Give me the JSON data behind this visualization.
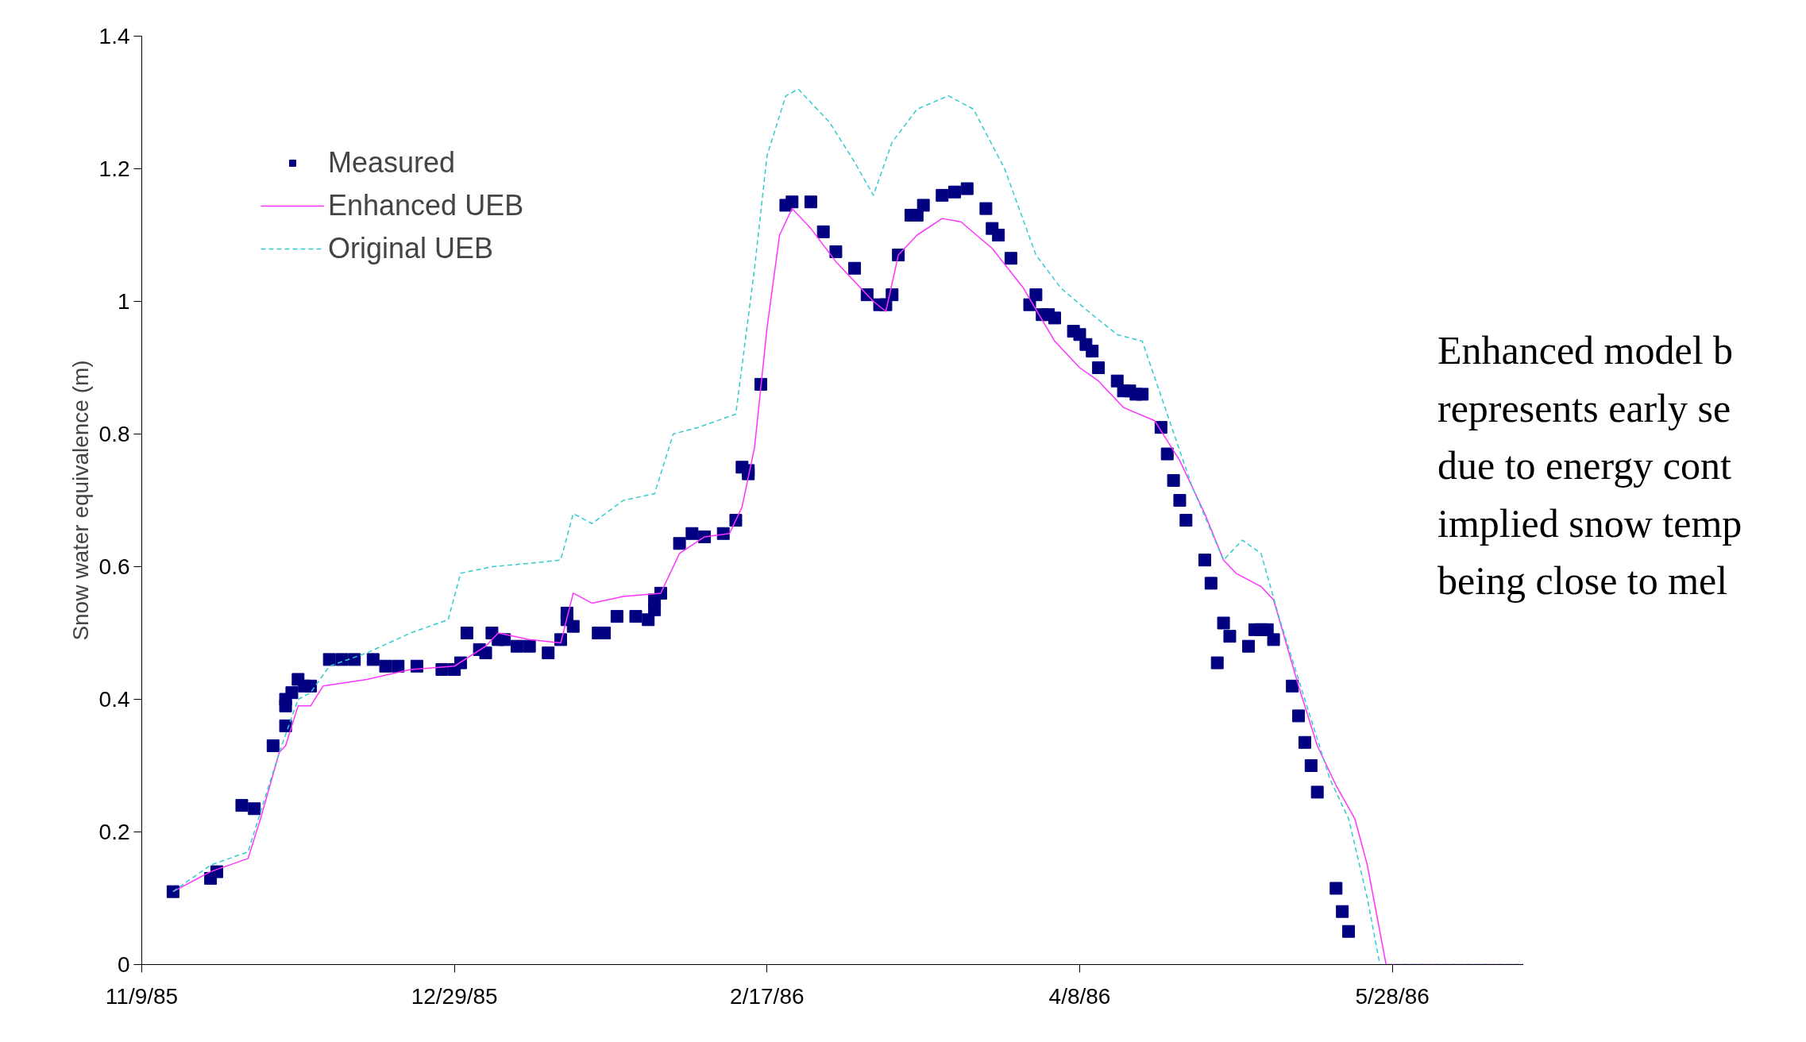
{
  "chart_data": {
    "type": "line",
    "ylabel": "Snow water equivalence (m)",
    "annotations": [
      "Enhanced model b\nrepresents early se\ndue to energy cont\nimplied snow temp\nbeing close to mel"
    ],
    "xlim": [
      "1985-11-09",
      "1986-06-18"
    ],
    "xticks": [
      {
        "value": "1985-11-09",
        "label": "11/9/85"
      },
      {
        "value": "1985-12-29",
        "label": "12/29/85"
      },
      {
        "value": "1986-02-17",
        "label": "2/17/86"
      },
      {
        "value": "1986-04-08",
        "label": "4/8/86"
      },
      {
        "value": "1986-05-28",
        "label": "5/28/86"
      }
    ],
    "ylim": [
      0,
      1.4
    ],
    "yticks": [
      0,
      0.2,
      0.4,
      0.6,
      0.8,
      1,
      1.2,
      1.4
    ],
    "grid": false,
    "legend": "top left",
    "series": [
      {
        "name": "Measured",
        "type": "scatter",
        "marker": "square",
        "color": "#000080",
        "x": [
          "1985-11-14",
          "1985-11-20",
          "1985-11-21",
          "1985-11-25",
          "1985-11-27",
          "1985-11-30",
          "1985-12-02",
          "1985-12-02",
          "1985-12-02",
          "1985-12-03",
          "1985-12-04",
          "1985-12-05",
          "1985-12-06",
          "1985-12-09",
          "1985-12-11",
          "1985-12-13",
          "1985-12-16",
          "1985-12-18",
          "1985-12-20",
          "1985-12-23",
          "1985-12-27",
          "1985-12-29",
          "1985-12-30",
          "1985-12-31",
          "1986-01-02",
          "1986-01-03",
          "1986-01-04",
          "1986-01-05",
          "1986-01-06",
          "1986-01-08",
          "1986-01-10",
          "1986-01-13",
          "1986-01-15",
          "1986-01-16",
          "1986-01-16",
          "1986-01-17",
          "1986-01-21",
          "1986-01-22",
          "1986-01-24",
          "1986-01-27",
          "1986-01-29",
          "1986-01-30",
          "1986-01-30",
          "1986-01-31",
          "1986-02-03",
          "1986-02-05",
          "1986-02-07",
          "1986-02-10",
          "1986-02-12",
          "1986-02-13",
          "1986-02-14",
          "1986-02-14",
          "1986-02-16",
          "1986-02-20",
          "1986-02-21",
          "1986-02-24",
          "1986-02-26",
          "1986-02-28",
          "1986-03-03",
          "1986-03-05",
          "1986-03-07",
          "1986-03-08",
          "1986-03-09",
          "1986-03-10",
          "1986-03-12",
          "1986-03-13",
          "1986-03-14",
          "1986-03-17",
          "1986-03-19",
          "1986-03-21",
          "1986-03-24",
          "1986-03-25",
          "1986-03-26",
          "1986-03-28",
          "1986-03-31",
          "1986-04-01",
          "1986-04-02",
          "1986-04-03",
          "1986-04-04",
          "1986-04-07",
          "1986-04-08",
          "1986-04-09",
          "1986-04-10",
          "1986-04-11",
          "1986-04-14",
          "1986-04-15",
          "1986-04-16",
          "1986-04-17",
          "1986-04-18",
          "1986-04-21",
          "1986-04-22",
          "1986-04-23",
          "1986-04-24",
          "1986-04-25",
          "1986-04-28",
          "1986-04-29",
          "1986-04-30",
          "1986-05-01",
          "1986-05-02",
          "1986-05-05",
          "1986-05-06",
          "1986-05-07",
          "1986-05-08",
          "1986-05-09",
          "1986-05-12",
          "1986-05-13",
          "1986-05-14",
          "1986-05-15",
          "1986-05-16",
          "1986-05-19",
          "1986-05-20",
          "1986-05-21"
        ],
        "values": [
          0.11,
          0.13,
          0.14,
          0.24,
          0.235,
          0.33,
          0.36,
          0.39,
          0.4,
          0.41,
          0.43,
          0.42,
          0.42,
          0.46,
          0.46,
          0.46,
          0.46,
          0.45,
          0.45,
          0.45,
          0.445,
          0.445,
          0.455,
          0.5,
          0.475,
          0.47,
          0.5,
          0.49,
          0.49,
          0.48,
          0.48,
          0.47,
          0.49,
          0.53,
          0.52,
          0.51,
          0.5,
          0.5,
          0.525,
          0.525,
          0.52,
          0.55,
          0.535,
          0.56,
          0.635,
          0.65,
          0.645,
          0.65,
          0.67,
          0.75,
          0.745,
          0.74,
          0.875,
          1.145,
          1.15,
          1.15,
          1.105,
          1.075,
          1.05,
          1.01,
          0.995,
          0.995,
          1.01,
          1.07,
          1.13,
          1.13,
          1.145,
          1.16,
          1.165,
          1.17,
          1.14,
          1.11,
          1.1,
          1.065,
          0.995,
          1.01,
          0.98,
          0.98,
          0.975,
          0.955,
          0.95,
          0.935,
          0.925,
          0.9,
          0.88,
          0.865,
          0.865,
          0.86,
          0.86,
          0.81,
          0.77,
          0.73,
          0.7,
          0.67,
          0.61,
          0.575,
          0.455,
          0.515,
          0.495,
          0.48,
          0.505,
          0.505,
          0.505,
          0.49,
          0.42,
          0.375,
          0.335,
          0.3,
          0.26,
          0.115,
          0.08,
          0.05
        ]
      },
      {
        "name": "Enhanced UEB",
        "line_style": "solid",
        "color": "#ff33ff",
        "x": [
          "1985-11-14",
          "1985-11-20",
          "1985-11-26",
          "1985-11-28",
          "1985-12-01",
          "1985-12-02",
          "1985-12-04",
          "1985-12-06",
          "1985-12-08",
          "1985-12-15",
          "1985-12-22",
          "1985-12-29",
          "1986-01-03",
          "1986-01-05",
          "1986-01-10",
          "1986-01-15",
          "1986-01-17",
          "1986-01-20",
          "1986-01-25",
          "1986-01-31",
          "1986-02-03",
          "1986-02-07",
          "1986-02-11",
          "1986-02-13",
          "1986-02-15",
          "1986-02-17",
          "1986-02-19",
          "1986-02-21",
          "1986-02-24",
          "1986-02-28",
          "1986-03-03",
          "1986-03-06",
          "1986-03-08",
          "1986-03-10",
          "1986-03-13",
          "1986-03-17",
          "1986-03-20",
          "1986-03-25",
          "1986-03-30",
          "1986-04-04",
          "1986-04-08",
          "1986-04-11",
          "1986-04-15",
          "1986-04-20",
          "1986-04-24",
          "1986-04-28",
          "1986-05-01",
          "1986-05-03",
          "1986-05-07",
          "1986-05-09",
          "1986-05-13",
          "1986-05-16",
          "1986-05-19",
          "1986-05-22",
          "1986-05-24",
          "1986-05-26",
          "1986-05-27",
          "1986-06-18"
        ],
        "values": [
          0.11,
          0.14,
          0.16,
          0.22,
          0.32,
          0.33,
          0.39,
          0.39,
          0.42,
          0.43,
          0.445,
          0.45,
          0.48,
          0.5,
          0.49,
          0.485,
          0.56,
          0.545,
          0.555,
          0.56,
          0.62,
          0.645,
          0.65,
          0.69,
          0.78,
          0.96,
          1.1,
          1.14,
          1.11,
          1.06,
          1.03,
          1.0,
          0.985,
          1.07,
          1.1,
          1.125,
          1.12,
          1.08,
          1.02,
          0.94,
          0.9,
          0.88,
          0.84,
          0.82,
          0.76,
          0.68,
          0.61,
          0.59,
          0.57,
          0.55,
          0.42,
          0.33,
          0.27,
          0.22,
          0.15,
          0.05,
          0.0,
          0.0
        ]
      },
      {
        "name": "Original UEB",
        "line_style": "dashed",
        "color": "#33cccc",
        "x": [
          "1985-11-14",
          "1985-11-20",
          "1985-11-26",
          "1985-12-01",
          "1985-12-04",
          "1985-12-06",
          "1985-12-09",
          "1985-12-15",
          "1985-12-22",
          "1985-12-28",
          "1985-12-30",
          "1986-01-04",
          "1986-01-10",
          "1986-01-15",
          "1986-01-17",
          "1986-01-20",
          "1986-01-25",
          "1986-01-30",
          "1986-02-02",
          "1986-02-06",
          "1986-02-12",
          "1986-02-15",
          "1986-02-17",
          "1986-02-20",
          "1986-02-22",
          "1986-02-27",
          "1986-03-03",
          "1986-03-06",
          "1986-03-09",
          "1986-03-13",
          "1986-03-18",
          "1986-03-22",
          "1986-03-27",
          "1986-04-01",
          "1986-04-05",
          "1986-04-10",
          "1986-04-14",
          "1986-04-18",
          "1986-04-22",
          "1986-04-26",
          "1986-05-01",
          "1986-05-04",
          "1986-05-07",
          "1986-05-10",
          "1986-05-14",
          "1986-05-18",
          "1986-05-21",
          "1986-05-24",
          "1986-05-26",
          "1986-06-18"
        ],
        "values": [
          0.11,
          0.15,
          0.17,
          0.32,
          0.4,
          0.41,
          0.45,
          0.47,
          0.5,
          0.52,
          0.59,
          0.6,
          0.605,
          0.61,
          0.68,
          0.665,
          0.7,
          0.71,
          0.8,
          0.81,
          0.83,
          1.05,
          1.22,
          1.31,
          1.32,
          1.27,
          1.21,
          1.16,
          1.24,
          1.29,
          1.31,
          1.29,
          1.2,
          1.07,
          1.02,
          0.98,
          0.95,
          0.94,
          0.83,
          0.72,
          0.61,
          0.64,
          0.62,
          0.52,
          0.4,
          0.28,
          0.22,
          0.1,
          0.0,
          0.0
        ]
      }
    ]
  }
}
